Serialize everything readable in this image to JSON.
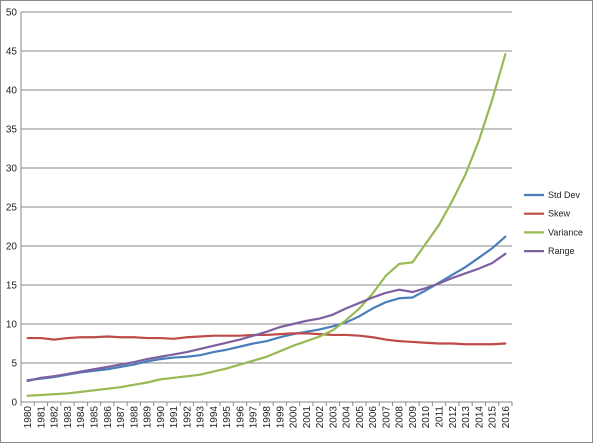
{
  "chart_data": {
    "type": "line",
    "title": "",
    "xlabel": "",
    "ylabel": "",
    "ylim": [
      0,
      50
    ],
    "y_ticks": [
      0,
      5,
      10,
      15,
      20,
      25,
      30,
      35,
      40,
      45,
      50
    ],
    "grid": "horizontal",
    "legend_position": "right",
    "categories": [
      "1980",
      "1981",
      "1982",
      "1983",
      "1984",
      "1985",
      "1986",
      "1987",
      "1988",
      "1989",
      "1990",
      "1991",
      "1992",
      "1993",
      "1994",
      "1995",
      "1996",
      "1997",
      "1998",
      "1999",
      "2000",
      "2001",
      "2002",
      "2003",
      "2004",
      "2005",
      "2006",
      "2007",
      "2008",
      "2009",
      "2010",
      "2011",
      "2012",
      "2013",
      "2014",
      "2015",
      "2016"
    ],
    "series": [
      {
        "name": "Std Dev",
        "color": "#4a7ebb",
        "values": [
          2.8,
          3.0,
          3.2,
          3.5,
          3.8,
          4.0,
          4.2,
          4.5,
          4.8,
          5.2,
          5.5,
          5.7,
          5.8,
          6.0,
          6.4,
          6.7,
          7.1,
          7.5,
          7.8,
          8.3,
          8.7,
          9.0,
          9.3,
          9.7,
          10.2,
          11.0,
          12.0,
          12.8,
          13.3,
          13.4,
          14.3,
          15.3,
          16.3,
          17.3,
          18.5,
          19.7,
          21.2
        ]
      },
      {
        "name": "Skew",
        "color": "#be4b48",
        "values": [
          8.2,
          8.2,
          8.0,
          8.2,
          8.3,
          8.3,
          8.4,
          8.3,
          8.3,
          8.2,
          8.2,
          8.1,
          8.3,
          8.4,
          8.5,
          8.5,
          8.5,
          8.6,
          8.6,
          8.7,
          8.8,
          8.8,
          8.7,
          8.6,
          8.6,
          8.5,
          8.3,
          8.0,
          7.8,
          7.7,
          7.6,
          7.5,
          7.5,
          7.4,
          7.4,
          7.4,
          7.5
        ]
      },
      {
        "name": "Variance",
        "color": "#98b954",
        "values": [
          0.8,
          0.9,
          1.0,
          1.1,
          1.3,
          1.5,
          1.7,
          1.9,
          2.2,
          2.5,
          2.9,
          3.1,
          3.3,
          3.5,
          3.9,
          4.3,
          4.8,
          5.3,
          5.8,
          6.5,
          7.2,
          7.8,
          8.4,
          9.2,
          10.5,
          12.0,
          13.9,
          16.2,
          17.7,
          17.9,
          20.3,
          22.7,
          25.8,
          29.2,
          33.5,
          38.7,
          44.6
        ]
      },
      {
        "name": "Range",
        "color": "#7d60a0",
        "values": [
          2.7,
          3.1,
          3.3,
          3.6,
          3.9,
          4.2,
          4.5,
          4.8,
          5.1,
          5.5,
          5.8,
          6.1,
          6.4,
          6.8,
          7.2,
          7.6,
          8.0,
          8.5,
          9.0,
          9.6,
          10.0,
          10.4,
          10.7,
          11.2,
          12.0,
          12.7,
          13.4,
          14.0,
          14.4,
          14.1,
          14.6,
          15.2,
          15.9,
          16.5,
          17.1,
          17.8,
          19.0
        ]
      }
    ]
  }
}
